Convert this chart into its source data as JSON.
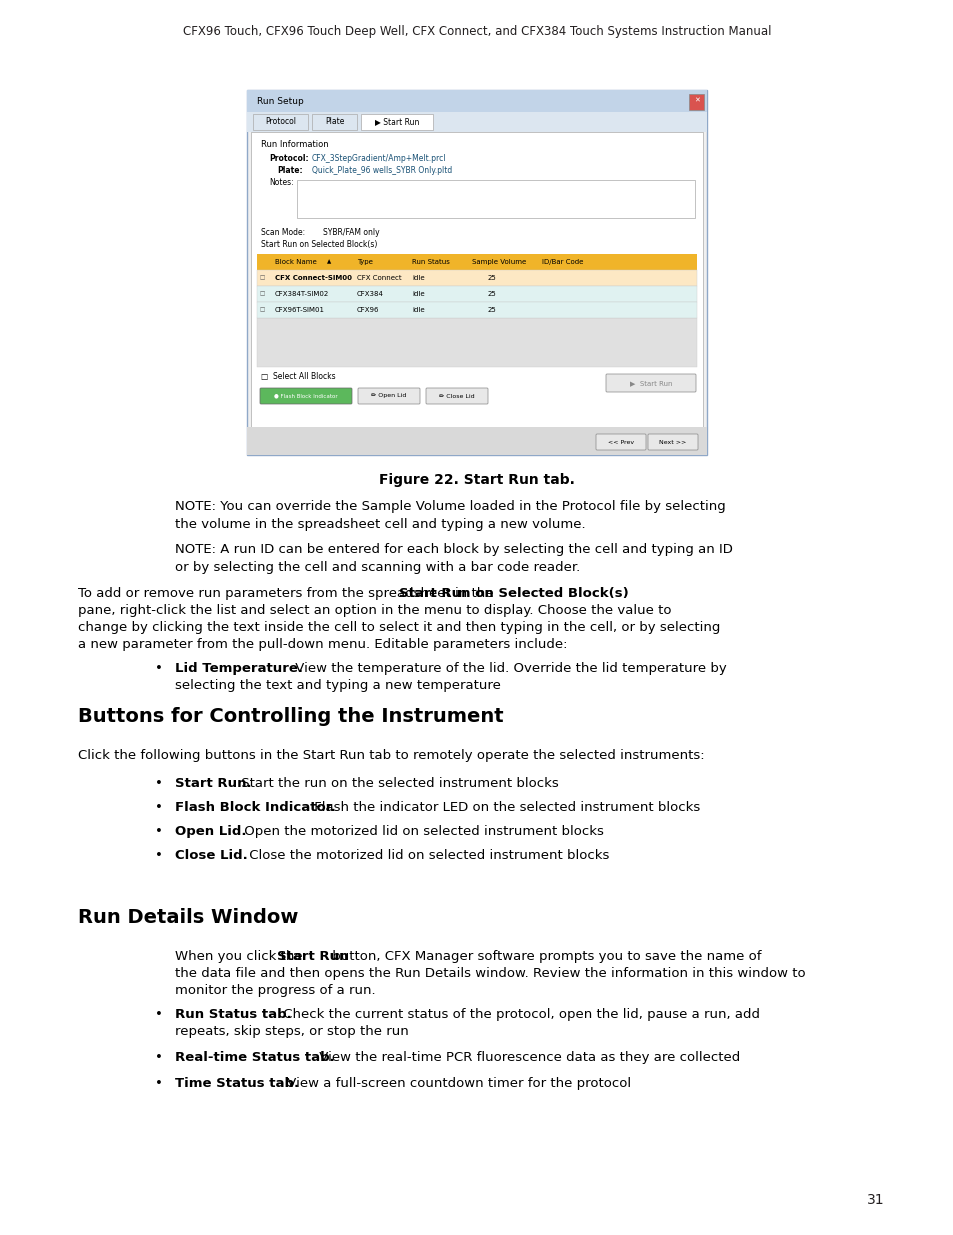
{
  "page_header": "CFX96 Touch, CFX96 Touch Deep Well, CFX Connect, and CFX384 Touch Systems Instruction Manual",
  "page_number": "31",
  "figure_caption": "Figure 22. Start Run tab.",
  "section1_title": "Buttons for Controlling the Instrument",
  "section1_intro": "Click the following buttons in the Start Run tab to remotely operate the selected instruments:",
  "section1_bullets": [
    [
      "Start Run.",
      " Start the run on the selected instrument blocks"
    ],
    [
      "Flash Block Indicator.",
      " Flash the indicator LED on the selected instrument blocks"
    ],
    [
      "Open Lid.",
      " Open the motorized lid on selected instrument blocks"
    ],
    [
      "Close Lid.",
      " Close the motorized lid on selected instrument blocks"
    ]
  ],
  "section2_title": "Run Details Window",
  "section2_bullets": [
    [
      "Run Status tab.",
      " Check the current status of the protocol, open the lid, pause a run, add repeats, skip steps, or stop the run"
    ],
    [
      "Real-time Status tab.",
      " View the real-time PCR fluorescence data as they are collected"
    ],
    [
      "Time Status tab.",
      " View a full-screen countdown timer for the protocol"
    ]
  ],
  "bg_color": "#ffffff",
  "text_color": "#000000",
  "header_color": "#231f20"
}
